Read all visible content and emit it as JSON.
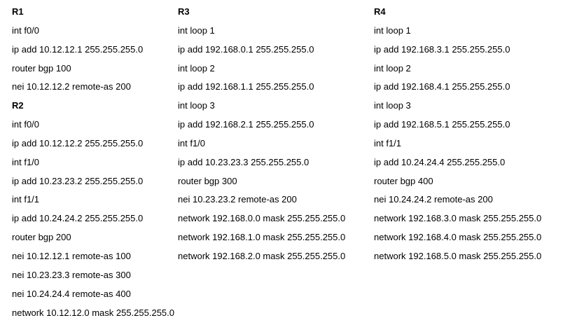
{
  "columns": [
    {
      "blocks": [
        {
          "title": "R1",
          "lines": [
            "int f0/0",
            "ip add 10.12.12.1 255.255.255.0",
            "router bgp 100",
            "nei 10.12.12.2 remote-as 200"
          ]
        },
        {
          "title": "R2",
          "lines": [
            "int f0/0",
            "ip add 10.12.12.2 255.255.255.0",
            "int f1/0",
            "ip add 10.23.23.2 255.255.255.0",
            "int f1/1",
            "ip add 10.24.24.2 255.255.255.0",
            "router bgp 200",
            "nei 10.12.12.1 remote-as 100",
            "nei 10.23.23.3 remote-as 300",
            "nei 10.24.24.4 remote-as 400",
            "network 10.12.12.0 mask 255.255.255.0"
          ]
        }
      ]
    },
    {
      "blocks": [
        {
          "title": "R3",
          "lines": [
            "int loop 1",
            "ip add 192.168.0.1 255.255.255.0",
            "int loop 2",
            "ip add 192.168.1.1 255.255.255.0",
            "int loop 3",
            "ip add 192.168.2.1 255.255.255.0",
            "int f1/0",
            "ip add 10.23.23.3 255.255.255.0",
            "router bgp 300",
            "nei 10.23.23.2 remote-as 200",
            "network 192.168.0.0 mask 255.255.255.0",
            "network 192.168.1.0 mask 255.255.255.0",
            "network 192.168.2.0 mask 255.255.255.0"
          ]
        }
      ]
    },
    {
      "blocks": [
        {
          "title": "R4",
          "lines": [
            "int loop 1",
            "ip add 192.168.3.1 255.255.255.0",
            "int loop 2",
            "ip add 192.168.4.1 255.255.255.0",
            "int loop 3",
            "ip add 192.168.5.1 255.255.255.0",
            "int f1/1",
            "ip add 10.24.24.4 255.255.255.0",
            "router bgp 400",
            "nei 10.24.24.2 remote-as 200",
            "network 192.168.3.0 mask 255.255.255.0",
            "network 192.168.4.0 mask 255.255.255.0",
            "network 192.168.5.0 mask 255.255.255.0"
          ]
        }
      ]
    }
  ]
}
